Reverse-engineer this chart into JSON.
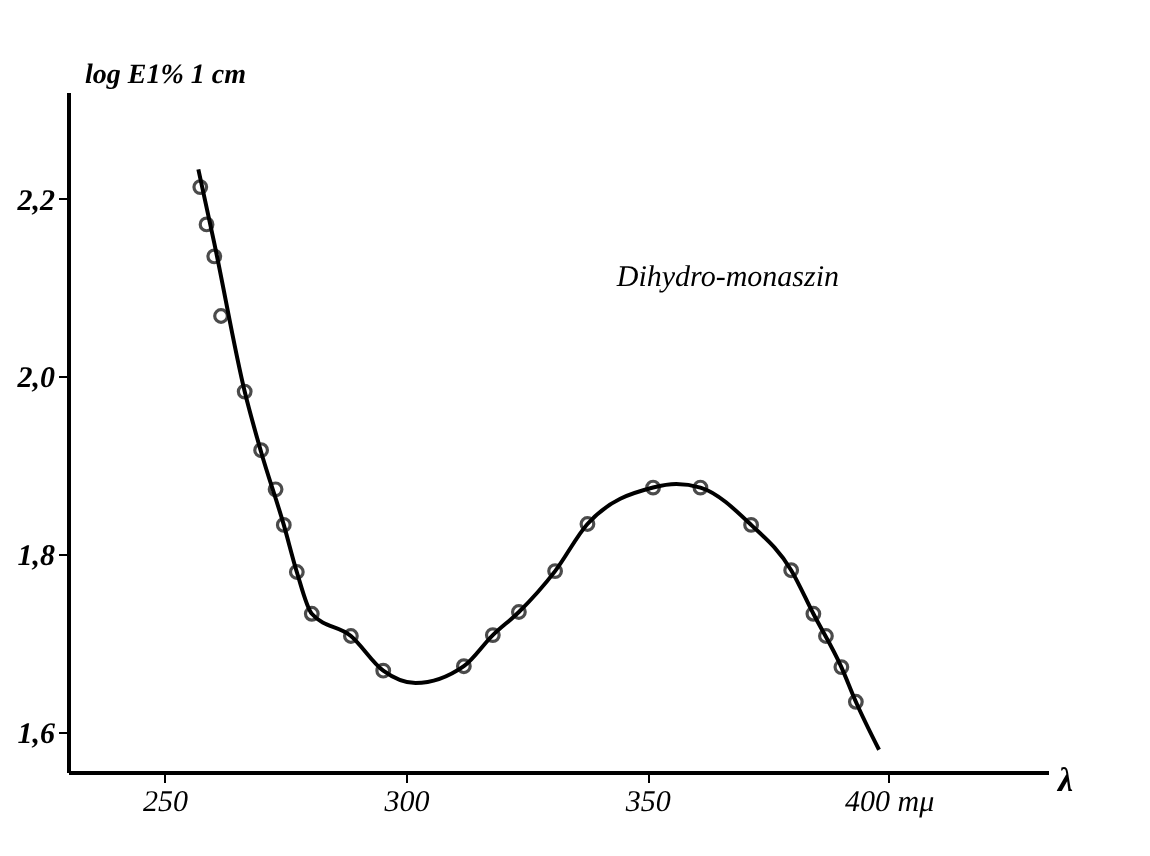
{
  "chart_data": {
    "type": "scatter",
    "xlabel": "λ",
    "ylabel": "log E1% 1 cm",
    "annotations": [
      "Dihydro-monaszin"
    ],
    "xlim": [
      230,
      433
    ],
    "ylim": [
      1.555,
      2.32
    ],
    "xticks": [
      250,
      300,
      350,
      {
        "value": 400,
        "label": "400 mμ"
      }
    ],
    "yticks": [
      {
        "value": 1.6,
        "label": "1,6"
      },
      {
        "value": 1.8,
        "label": "1,8"
      },
      {
        "value": 2.0,
        "label": "2,0"
      },
      {
        "value": 2.2,
        "label": "2,2"
      }
    ],
    "grid": false,
    "series": [
      {
        "color": "#000000",
        "marker": "circle",
        "x": [
          257.4,
          258.7,
          260.3,
          261.7,
          266.6,
          270,
          273,
          274.7,
          277.4,
          280.5,
          288.6,
          295.3,
          312,
          318,
          323.4,
          330.9,
          337.6,
          351.2,
          361,
          371.5,
          379.8,
          384.4,
          387,
          390.2,
          393.2
        ],
        "values": [
          2.213,
          2.171,
          2.135,
          2.068,
          1.983,
          1.917,
          1.873,
          1.833,
          1.78,
          1.733,
          1.708,
          1.669,
          1.674,
          1.709,
          1.735,
          1.781,
          1.834,
          1.875,
          1.875,
          1.833,
          1.782,
          1.733,
          1.708,
          1.673,
          1.634
        ]
      },
      {
        "type": "line",
        "color": "#000000",
        "line_style": "solid",
        "x": [
          257,
          260.3,
          266.6,
          270,
          274.7,
          277.4,
          280.5,
          288.6,
          295.3,
          302,
          312,
          318,
          323.4,
          330.9,
          337.6,
          351.2,
          356,
          361,
          371.5,
          379.8,
          384.4,
          390.2,
          393.2,
          398
        ],
        "values": [
          2.233,
          2.15,
          1.983,
          1.915,
          1.833,
          1.78,
          1.733,
          1.708,
          1.669,
          1.655,
          1.674,
          1.709,
          1.735,
          1.781,
          1.834,
          1.875,
          1.879,
          1.875,
          1.833,
          1.782,
          1.733,
          1.673,
          1.634,
          1.58
        ]
      }
    ]
  }
}
